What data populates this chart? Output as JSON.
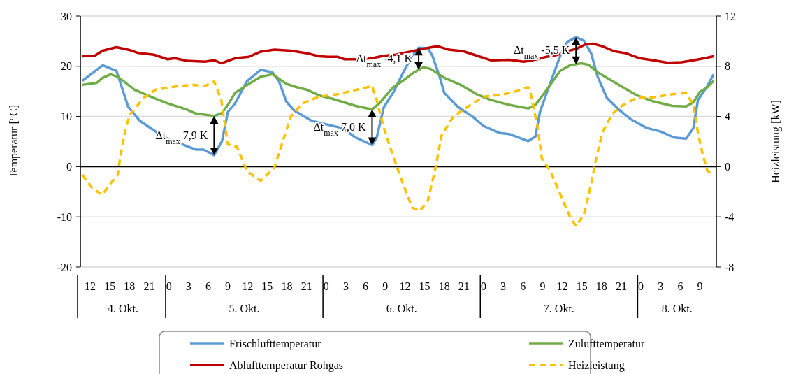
{
  "chart_data": {
    "type": "line",
    "ylabel": "Temperatur [°C]",
    "y2label": "Heizleistung [kW]",
    "xlim": [
      "--10-04T10:30",
      "--10-08T11:30"
    ],
    "xticks": [
      {
        "value": "--10-04T12:00",
        "label": "12"
      },
      {
        "value": "--10-04T15:00",
        "label": "15"
      },
      {
        "value": "--10-04T18:00",
        "label": "18"
      },
      {
        "value": "--10-04T21:00",
        "label": "21"
      },
      {
        "value": "--10-05T00:00",
        "label": "0"
      },
      {
        "value": "--10-05T03:00",
        "label": "3"
      },
      {
        "value": "--10-05T06:00",
        "label": "6"
      },
      {
        "value": "--10-05T09:00",
        "label": "9"
      },
      {
        "value": "--10-05T12:00",
        "label": "12"
      },
      {
        "value": "--10-05T15:00",
        "label": "15"
      },
      {
        "value": "--10-05T18:00",
        "label": "18"
      },
      {
        "value": "--10-05T21:00",
        "label": "21"
      },
      {
        "value": "--10-06T00:00",
        "label": "0"
      },
      {
        "value": "--10-06T03:00",
        "label": "3"
      },
      {
        "value": "--10-06T06:00",
        "label": "6"
      },
      {
        "value": "--10-06T09:00",
        "label": "9"
      },
      {
        "value": "--10-06T12:00",
        "label": "12"
      },
      {
        "value": "--10-06T15:00",
        "label": "15"
      },
      {
        "value": "--10-06T18:00",
        "label": "18"
      },
      {
        "value": "--10-06T21:00",
        "label": "21"
      },
      {
        "value": "--10-07T00:00",
        "label": "0"
      },
      {
        "value": "--10-07T03:00",
        "label": "3"
      },
      {
        "value": "--10-07T06:00",
        "label": "6"
      },
      {
        "value": "--10-07T09:00",
        "label": "9"
      },
      {
        "value": "--10-07T12:00",
        "label": "12"
      },
      {
        "value": "--10-07T15:00",
        "label": "15"
      },
      {
        "value": "--10-07T18:00",
        "label": "18"
      },
      {
        "value": "--10-07T21:00",
        "label": "21"
      },
      {
        "value": "--10-08T00:00",
        "label": "0"
      },
      {
        "value": "--10-08T03:00",
        "label": "3"
      },
      {
        "value": "--10-08T06:00",
        "label": "6"
      },
      {
        "value": "--10-08T09:00",
        "label": "9"
      }
    ],
    "ylim": [
      -20,
      30
    ],
    "yticks": [
      -20,
      -10,
      0,
      10,
      20,
      30
    ],
    "y2lim": [
      -8,
      12
    ],
    "y2ticks": [
      -8,
      -4,
      0,
      4,
      8,
      12
    ],
    "grid": "y",
    "legend": "bottom",
    "series": [
      {
        "name": "Frischlufttemperatur",
        "color": "#5b9bd5",
        "x": [
          "--10-04T10:48",
          "--10-04T13:54",
          "--10-04T16:00",
          "--10-04T17:48",
          "--10-04T19:36",
          "--10-04T23:06",
          "--10-05T02:42",
          "--10-05T04:06",
          "--10-05T05:18",
          "--10-05T06:54",
          "--10-05T08:06",
          "--10-05T09:00",
          "--10-05T10:06",
          "--10-05T11:54",
          "--10-05T14:00",
          "--10-05T15:48",
          "--10-05T16:48",
          "--10-05T17:54",
          "--10-05T19:06",
          "--10-05T21:48",
          "--10-06T02:24",
          "--10-06T04:30",
          "--10-06T07:00",
          "--10-06T07:42",
          "--10-06T08:48",
          "--10-06T10:12",
          "--10-06T11:36",
          "--10-06T13:06",
          "--10-06T14:06",
          "--10-06T15:30",
          "--10-06T16:12",
          "--10-06T17:18",
          "--10-06T18:00",
          "--10-06T20:06",
          "--10-06T22:18",
          "--10-07T00:00",
          "--10-07T02:30",
          "--10-07T03:54",
          "--10-07T06:48",
          "--10-07T07:54",
          "--10-07T08:36",
          "--10-07T10:00",
          "--10-07T11:42",
          "--10-07T12:48",
          "--10-07T14:06",
          "--10-07T15:18",
          "--10-07T16:24",
          "--10-07T17:24",
          "--10-07T18:48",
          "--10-07T20:36",
          "--10-07T22:24",
          "--10-08T00:54",
          "--10-08T03:00",
          "--10-08T05:06",
          "--10-08T06:54",
          "--10-08T08:00",
          "--10-08T08:42",
          "--10-08T10:06",
          "--10-08T11:06"
        ],
        "values": [
          17.1,
          20.2,
          19.1,
          11.9,
          9.1,
          6.0,
          4.1,
          3.4,
          3.4,
          2.3,
          5.1,
          10.9,
          12.6,
          17.0,
          19.3,
          18.8,
          17.0,
          13.0,
          11.2,
          9.1,
          7.7,
          5.8,
          4.3,
          5.8,
          11.9,
          14.7,
          18.4,
          22.1,
          23.7,
          23.6,
          22.1,
          17.9,
          14.7,
          11.9,
          10.0,
          8.1,
          6.7,
          6.5,
          5.1,
          6.0,
          10.9,
          16.0,
          22.1,
          24.9,
          25.8,
          25.1,
          22.6,
          17.9,
          13.7,
          11.4,
          9.5,
          7.7,
          7.0,
          5.8,
          5.6,
          7.7,
          13.3,
          16.0,
          18.4
        ]
      },
      {
        "name": "Zulufttemperatur",
        "color": "#70ad47",
        "x": [
          "--10-04T10:48",
          "--10-04T13:00",
          "--10-04T13:54",
          "--10-04T15:06",
          "--10-04T16:12",
          "--10-04T18:48",
          "--10-04T21:42",
          "--10-04T23:48",
          "--10-05T02:42",
          "--10-05T04:06",
          "--10-05T06:54",
          "--10-05T08:06",
          "--10-05T09:00",
          "--10-05T10:06",
          "--10-05T12:12",
          "--10-05T14:00",
          "--10-05T15:48",
          "--10-05T17:54",
          "--10-05T19:18",
          "--10-05T21:06",
          "--10-05T22:54",
          "--10-06T01:00",
          "--10-06T04:30",
          "--10-06T07:00",
          "--10-06T08:06",
          "--10-06T10:12",
          "--10-06T12:00",
          "--10-06T13:24",
          "--10-06T14:48",
          "--10-06T15:54",
          "--10-06T18:00",
          "--10-06T20:30",
          "--10-06T23:00",
          "--10-07T01:06",
          "--10-07T03:54",
          "--10-07T06:48",
          "--10-07T07:54",
          "--10-07T09:18",
          "--10-07T11:42",
          "--10-07T13:12",
          "--10-07T14:54",
          "--10-07T16:00",
          "--10-07T17:24",
          "--10-07T19:12",
          "--10-07T21:00",
          "--10-07T23:24",
          "--10-08T01:54",
          "--10-08T04:48",
          "--10-08T06:54",
          "--10-08T08:00",
          "--10-08T09:00",
          "--10-08T10:06",
          "--10-08T11:06"
        ],
        "values": [
          16.3,
          16.7,
          17.7,
          18.4,
          17.9,
          15.3,
          13.7,
          12.6,
          11.4,
          10.6,
          10.1,
          10.7,
          12.3,
          14.7,
          16.5,
          17.9,
          18.4,
          16.5,
          15.9,
          15.3,
          14.2,
          13.5,
          12.1,
          11.4,
          12.6,
          15.8,
          17.4,
          18.8,
          19.8,
          19.5,
          17.7,
          16.3,
          14.4,
          13.3,
          12.3,
          11.6,
          12.3,
          14.7,
          19.1,
          20.2,
          20.6,
          20.3,
          18.8,
          17.4,
          16.0,
          14.2,
          13.0,
          12.1,
          12.0,
          12.8,
          14.9,
          15.8,
          17.1
        ]
      },
      {
        "name": "Ablufttemperatur Rohgas",
        "color": "#c00000",
        "x": [
          "--10-04T10:48",
          "--10-04T12:42",
          "--10-04T13:54",
          "--10-04T16:00",
          "--10-04T18:06",
          "--10-04T19:12",
          "--10-04T21:42",
          "--10-04T23:48",
          "--10-05T00:54",
          "--10-05T02:42",
          "--10-05T05:30",
          "--10-05T06:54",
          "--10-05T08:00",
          "--10-05T10:06",
          "--10-05T12:12",
          "--10-05T14:00",
          "--10-05T16:06",
          "--10-05T18:36",
          "--10-05T21:24",
          "--10-05T22:54",
          "--10-06T00:18",
          "--10-06T01:42",
          "--10-06T02:48",
          "--10-06T04:30",
          "--10-06T07:00",
          "--10-06T08:48",
          "--10-06T10:36",
          "--10-06T13:06",
          "--10-06T14:48",
          "--10-06T17:00",
          "--10-06T18:42",
          "--10-06T20:54",
          "--10-06T23:00",
          "--10-07T01:06",
          "--10-07T03:54",
          "--10-07T06:06",
          "--10-07T08:12",
          "--10-07T09:36",
          "--10-07T11:00",
          "--10-07T12:48",
          "--10-07T14:12",
          "--10-07T15:36",
          "--10-07T16:42",
          "--10-07T18:06",
          "--10-07T19:54",
          "--10-07T21:42",
          "--10-07T23:48",
          "--10-08T01:54",
          "--10-08T04:06",
          "--10-08T06:12",
          "--10-08T08:00",
          "--10-08T09:42",
          "--10-08T11:06"
        ],
        "values": [
          22.0,
          22.1,
          23.1,
          23.8,
          23.2,
          22.7,
          22.3,
          21.4,
          21.6,
          21.1,
          20.9,
          21.2,
          20.6,
          21.6,
          21.9,
          22.9,
          23.3,
          23.1,
          22.5,
          22.0,
          21.9,
          21.9,
          21.4,
          21.4,
          21.6,
          22.1,
          22.3,
          23.0,
          23.5,
          24.0,
          23.3,
          23.0,
          22.1,
          21.2,
          21.3,
          20.9,
          21.4,
          21.9,
          22.2,
          23.0,
          23.5,
          24.4,
          24.5,
          24.0,
          23.0,
          22.6,
          21.6,
          21.2,
          20.7,
          20.8,
          21.2,
          21.6,
          22.0
        ]
      },
      {
        "name": "Heizleistung",
        "color": "#ffc000",
        "axis": "y2",
        "line_style": "dashed",
        "x": [
          "--10-04T10:48",
          "--10-04T12:24",
          "--10-04T13:54",
          "--10-04T15:00",
          "--10-04T16:12",
          "--10-04T16:30",
          "--10-04T17:24",
          "--10-04T18:06",
          "--10-04T20:12",
          "--10-04T22:00",
          "--10-05T01:30",
          "--10-05T03:42",
          "--10-05T05:30",
          "--10-05T06:54",
          "--10-05T08:00",
          "--10-05T09:00",
          "--10-05T10:24",
          "--10-05T11:54",
          "--10-05T14:00",
          "--10-05T16:06",
          "--10-05T17:06",
          "--10-05T18:36",
          "--10-05T20:18",
          "--10-05T22:54",
          "--10-06T01:42",
          "--10-06T07:00",
          "--10-06T07:42",
          "--10-06T08:48",
          "--10-06T10:12",
          "--10-06T11:36",
          "--10-06T13:06",
          "--10-06T14:18",
          "--10-06T15:30",
          "--10-06T16:36",
          "--10-06T17:36",
          "--10-06T19:24",
          "--10-06T21:30",
          "--10-07T00:00",
          "--10-07T02:30",
          "--10-07T04:36",
          "--10-07T06:48",
          "--10-07T07:06",
          "--10-07T08:12",
          "--10-07T08:54",
          "--10-07T10:18",
          "--10-07T12:06",
          "--10-07T13:12",
          "--10-07T14:06",
          "--10-07T15:18",
          "--10-07T16:24",
          "--10-07T17:06",
          "--10-07T18:06",
          "--10-07T19:36",
          "--10-07T21:18",
          "--10-07T23:24",
          "--10-08T01:54",
          "--10-08T04:48",
          "--10-08T06:54",
          "--10-08T08:00",
          "--10-08T08:42",
          "--10-08T09:24",
          "--10-08T10:06",
          "--10-08T10:48"
        ],
        "values": [
          -0.65,
          -1.77,
          -2.23,
          -1.4,
          -0.65,
          0.47,
          3.07,
          4.19,
          5.49,
          6.14,
          6.42,
          6.51,
          6.42,
          6.79,
          5.3,
          1.77,
          1.58,
          -0.37,
          -1.12,
          -0.09,
          1.58,
          4.0,
          5.02,
          5.58,
          5.77,
          6.42,
          5.3,
          3.07,
          0.84,
          -1.21,
          -3.26,
          -3.53,
          -2.7,
          -0.28,
          2.51,
          4.0,
          4.74,
          5.58,
          5.71,
          5.95,
          6.33,
          6.05,
          3.26,
          0.65,
          -0.47,
          -2.7,
          -4.0,
          -4.74,
          -3.81,
          -1.4,
          0.47,
          2.7,
          4.19,
          4.93,
          5.49,
          5.53,
          5.77,
          5.86,
          4.93,
          2.7,
          1.02,
          -0.28,
          -0.65
        ]
      }
    ],
    "annotations": [
      {
        "text": "Δt$_{max}$ 7,9 K",
        "x": "--10-05T06:54",
        "y": 2.3
      },
      {
        "text": "Δt$_{max}$ 7,0 K",
        "x": "--10-06T07:00",
        "y": 4.3
      },
      {
        "text": "Δt$_{max}$ -4,1 K",
        "x": "--10-06T14:06",
        "y": 23.7
      },
      {
        "text": "Δt$_{max}$ -5,5 K",
        "x": "--10-07T14:06",
        "y": 25.8
      },
      "4. Okt.",
      "5. Okt.",
      "6. Okt.",
      "7. Okt.",
      "8. Okt."
    ]
  }
}
